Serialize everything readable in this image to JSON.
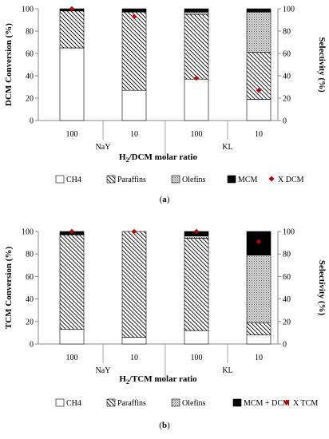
{
  "chart_data": [
    {
      "type": "bar",
      "stacked": true,
      "panel_label": "(a)",
      "categories": [
        "100",
        "10",
        "100",
        "10"
      ],
      "groups": [
        {
          "label": "NaY",
          "categories": [
            "100",
            "10"
          ]
        },
        {
          "label": "KL",
          "categories": [
            "100",
            "10"
          ]
        }
      ],
      "series": [
        {
          "name": "CH4",
          "pattern": "white",
          "values": [
            65,
            27,
            37,
            19
          ]
        },
        {
          "name": "Paraffins",
          "pattern": "hatch",
          "values": [
            33,
            70,
            58,
            42
          ]
        },
        {
          "name": "Olefins",
          "pattern": "dots",
          "values": [
            0,
            0,
            2,
            36
          ]
        },
        {
          "name": "MCM",
          "pattern": "black",
          "values": [
            2,
            3,
            3,
            3
          ]
        }
      ],
      "marker_series": {
        "name": "X DCM",
        "color": "#c00000",
        "values": [
          100,
          93,
          38,
          27
        ]
      },
      "xlabel": {
        "prefix": "H",
        "sub": "2",
        "suffix": "/DCM molar ratio"
      },
      "ylabel": "DCM Conversion (%)",
      "y2label": "Selectivity (%)",
      "ylim": [
        0,
        100
      ],
      "yticks": [
        "0",
        "20",
        "40",
        "60",
        "80",
        "100"
      ],
      "y2ticks": [
        "0",
        "20",
        "40",
        "60",
        "80",
        "100"
      ],
      "grid": false,
      "legend_position": "bottom"
    },
    {
      "type": "bar",
      "stacked": true,
      "panel_label": "(b)",
      "categories": [
        "100",
        "10",
        "100",
        "10"
      ],
      "groups": [
        {
          "label": "NaY",
          "categories": [
            "100",
            "10"
          ]
        },
        {
          "label": "KL",
          "categories": [
            "100",
            "10"
          ]
        }
      ],
      "series": [
        {
          "name": "CH4",
          "pattern": "white",
          "values": [
            13,
            6,
            12,
            8
          ]
        },
        {
          "name": "Paraffins",
          "pattern": "hatch",
          "values": [
            84,
            94,
            82,
            11
          ]
        },
        {
          "name": "Olefins",
          "pattern": "dots",
          "values": [
            0,
            0,
            2,
            60
          ]
        },
        {
          "name": "MCM + DCM",
          "pattern": "black",
          "values": [
            3,
            0,
            4,
            21
          ]
        }
      ],
      "marker_series": {
        "name": "X TCM",
        "color": "#c00000",
        "values": [
          100,
          100,
          100,
          91
        ]
      },
      "xlabel": {
        "prefix": "H",
        "sub": "2",
        "suffix": "/TCM molar ratio"
      },
      "ylabel": "TCM Conversion (%)",
      "y2label": "Selectivity (%)",
      "ylim": [
        0,
        100
      ],
      "yticks": [
        "0",
        "20",
        "40",
        "60",
        "80",
        "100"
      ],
      "y2ticks": [
        "0",
        "20",
        "40",
        "60",
        "80",
        "100"
      ],
      "grid": false,
      "legend_position": "bottom"
    }
  ]
}
